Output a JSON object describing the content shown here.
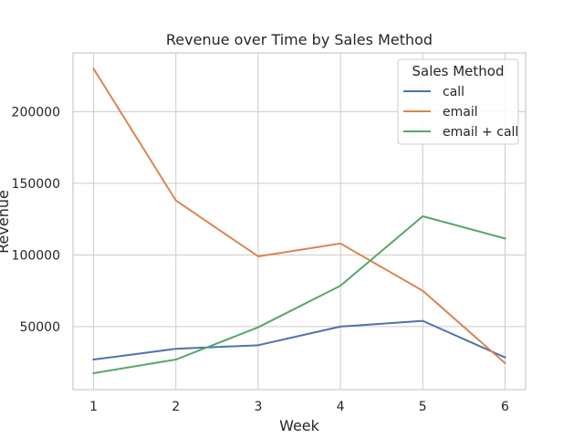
{
  "chart_data": {
    "type": "line",
    "title": "Revenue over Time by Sales Method",
    "xlabel": "Week",
    "ylabel": "Revenue",
    "x": [
      1,
      2,
      3,
      4,
      5,
      6
    ],
    "xlim": [
      0.75,
      6.25
    ],
    "ylim": [
      6000,
      241000
    ],
    "yticks": [
      50000,
      100000,
      150000,
      200000
    ],
    "grid": true,
    "legend": {
      "title": "Sales Method",
      "placement": "top-right"
    },
    "series": [
      {
        "name": "call",
        "color": "#4c72b0",
        "values": [
          27000,
          34500,
          37000,
          50000,
          54000,
          28500
        ]
      },
      {
        "name": "email",
        "color": "#dd8452",
        "values": [
          230000,
          138000,
          99000,
          108000,
          75000,
          24500
        ]
      },
      {
        "name": "email + call",
        "color": "#55a868",
        "values": [
          17500,
          27000,
          49500,
          78500,
          127000,
          111500
        ]
      }
    ]
  }
}
